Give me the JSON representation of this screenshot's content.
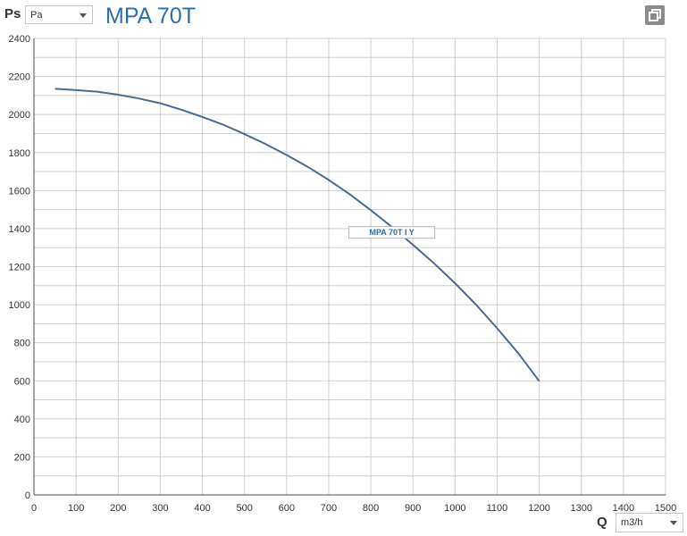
{
  "header": {
    "y_axis_symbol": "Ps",
    "y_unit_selected": "Pa",
    "title": "MPA 70T",
    "restore_icon": "window-restore-icon"
  },
  "footer": {
    "x_axis_symbol": "Q",
    "x_unit_selected": "m3/h"
  },
  "colors": {
    "title": "#2a6fae",
    "curve": "#4a6a8e",
    "grid": "#cfcfcf",
    "axis": "#4d4d4d"
  },
  "chart_data": {
    "type": "line",
    "title": "MPA 70T",
    "xlabel": "Q",
    "ylabel": "Ps",
    "x_unit": "m3/h",
    "y_unit": "Pa",
    "xlim": [
      0,
      1500
    ],
    "ylim": [
      0,
      2400
    ],
    "x_ticks": [
      0,
      100,
      200,
      300,
      400,
      500,
      600,
      700,
      800,
      900,
      1000,
      1100,
      1200,
      1300,
      1400,
      1500
    ],
    "y_ticks": [
      0,
      200,
      400,
      600,
      800,
      1000,
      1200,
      1400,
      1600,
      1800,
      2000,
      2200,
      2400
    ],
    "grid": true,
    "series": [
      {
        "name": "MPA 70T I Y",
        "x": [
          50,
          100,
          150,
          200,
          250,
          300,
          350,
          400,
          450,
          500,
          550,
          600,
          650,
          700,
          750,
          800,
          850,
          900,
          950,
          1000,
          1050,
          1100,
          1150,
          1200
        ],
        "y": [
          2135,
          2128,
          2120,
          2104,
          2084,
          2059,
          2025,
          1987,
          1946,
          1897,
          1845,
          1787,
          1725,
          1656,
          1581,
          1497,
          1409,
          1315,
          1218,
          1113,
          1000,
          876,
          746,
          598
        ]
      }
    ],
    "annotations": [
      {
        "text": "MPA 70T I Y",
        "x": 850,
        "y": 1380
      }
    ]
  }
}
